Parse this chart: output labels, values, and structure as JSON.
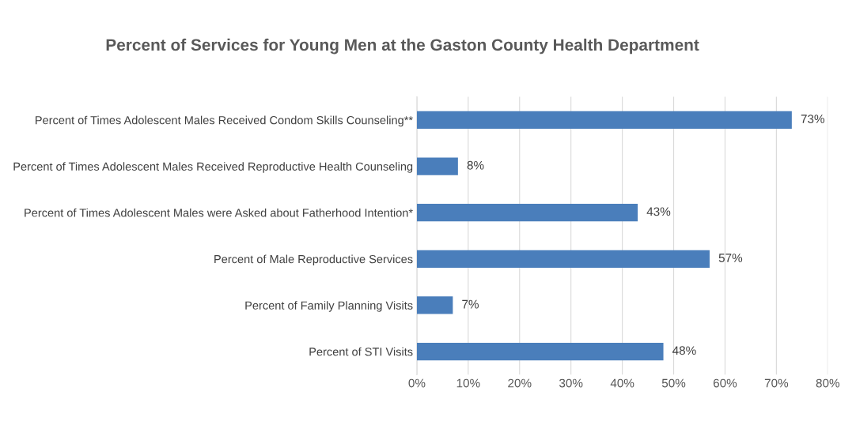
{
  "chart_data": {
    "type": "bar",
    "orientation": "horizontal",
    "title": "Percent of Services for Young Men at the Gaston County Health Department",
    "categories": [
      "Percent of Times Adolescent Males Received Condom Skills Counseling**",
      "Percent of Times Adolescent Males Received Reproductive Health Counseling",
      "Percent of Times Adolescent Males were Asked about Fatherhood Intention*",
      "Percent of Male Reproductive Services",
      "Percent of Family Planning Visits",
      "Percent of STI Visits"
    ],
    "values": [
      73,
      8,
      43,
      57,
      7,
      48
    ],
    "value_labels": [
      "73%",
      "8%",
      "43%",
      "57%",
      "7%",
      "48%"
    ],
    "color": "#4a7ebb",
    "xlim": [
      0,
      80
    ],
    "xticks": [
      {
        "value": 0,
        "label": "0%"
      },
      {
        "value": 10,
        "label": "10%"
      },
      {
        "value": 20,
        "label": "20%"
      },
      {
        "value": 30,
        "label": "30%"
      },
      {
        "value": 40,
        "label": "40%"
      },
      {
        "value": 50,
        "label": "50%"
      },
      {
        "value": 60,
        "label": "60%"
      },
      {
        "value": 70,
        "label": "70%"
      },
      {
        "value": 80,
        "label": "80%"
      }
    ],
    "grid": "x"
  }
}
